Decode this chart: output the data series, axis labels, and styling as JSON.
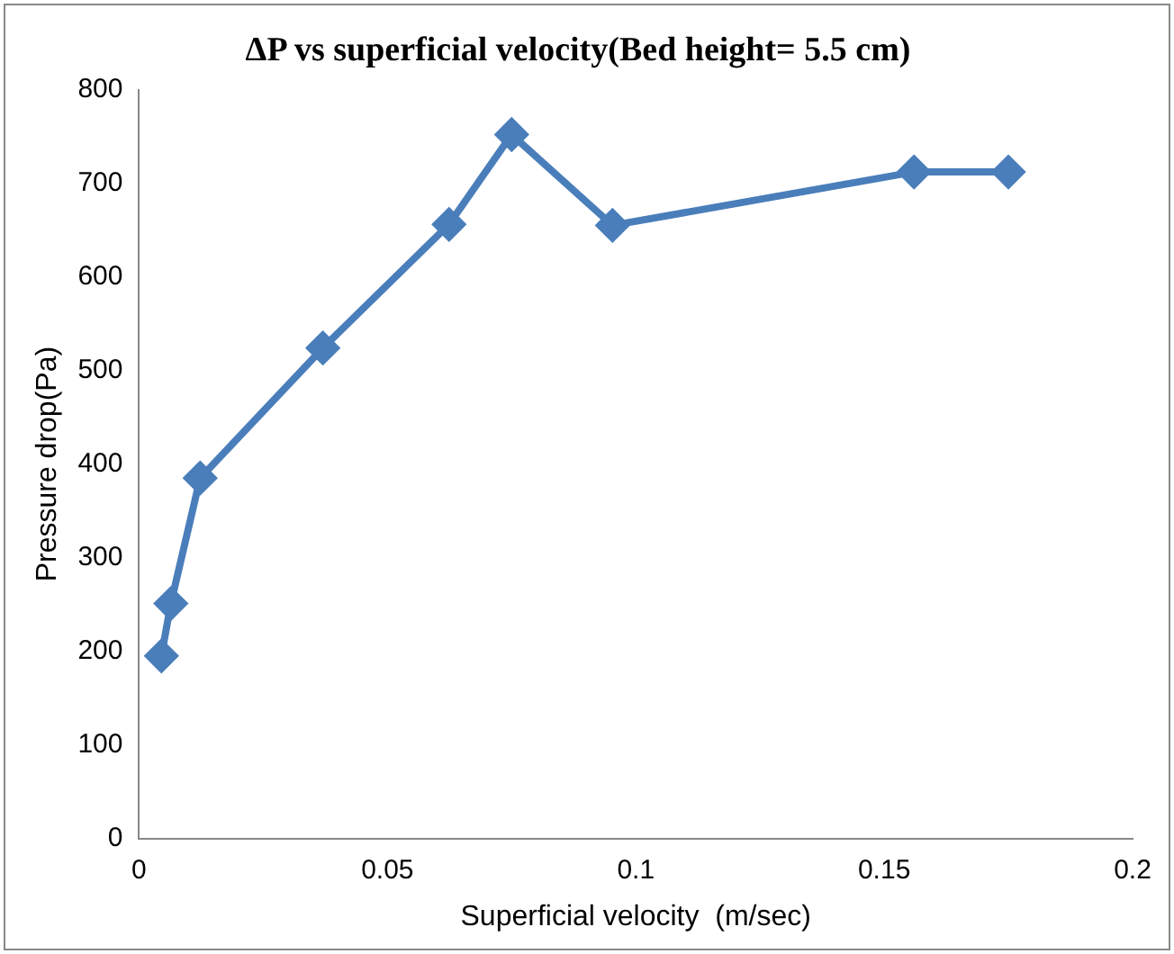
{
  "chart_data": {
    "type": "line",
    "title": "ΔP vs superficial velocity(Bed height= 5.5 cm)",
    "xlabel": "Superficial velocity  (m/sec)",
    "ylabel": "Pressure drop(Pa)",
    "x": [
      0.0045,
      0.0064,
      0.0123,
      0.037,
      0.0624,
      0.075,
      0.0953,
      0.156,
      0.175
    ],
    "series": [
      {
        "color": "#4a7ebb",
        "values": [
          195,
          251,
          385,
          524,
          656,
          752,
          655,
          712,
          712
        ]
      }
    ],
    "xlim": [
      0,
      0.2
    ],
    "xticks": [
      0,
      0.05,
      0.1,
      0.15,
      0.2
    ],
    "ylim": [
      0,
      800
    ],
    "yticks": [
      0,
      100,
      200,
      300,
      400,
      500,
      600,
      700,
      800
    ],
    "grid": false,
    "legend": false,
    "marker": "diamond",
    "line_style": "solid"
  }
}
